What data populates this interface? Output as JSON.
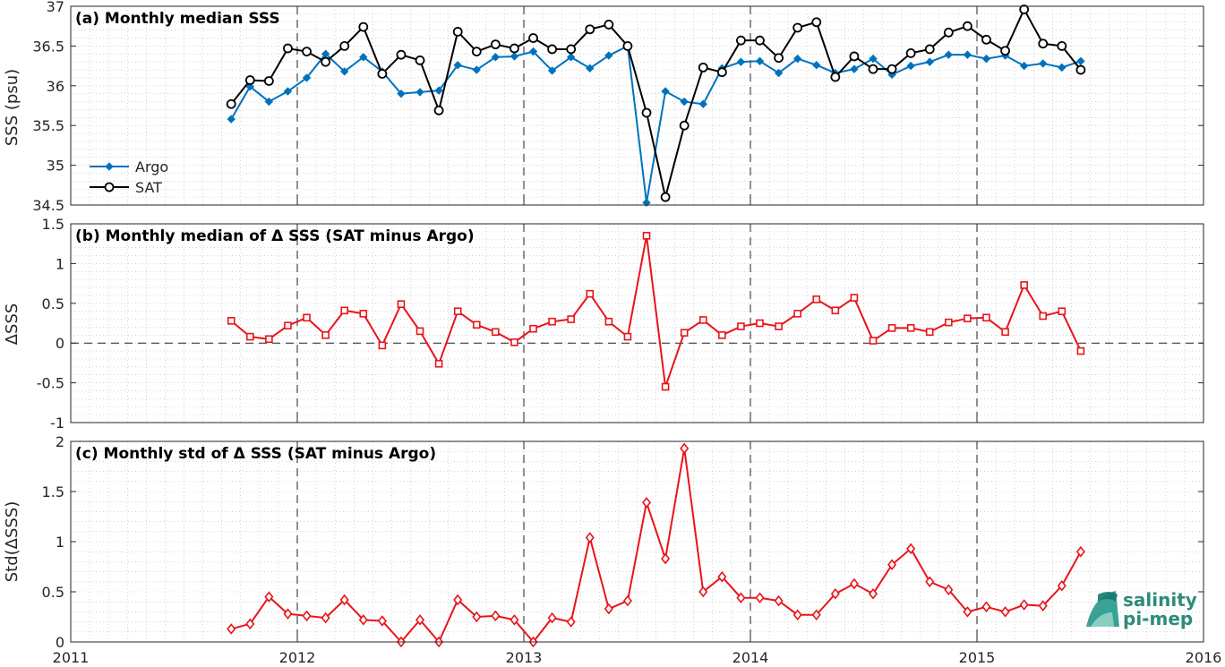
{
  "colors": {
    "argo": "#0072BD",
    "sat": "#000000",
    "delta": "#E8141A",
    "grid": "#b9b9b9",
    "axis": "#262626"
  },
  "logo": {
    "line1": "salinity",
    "line2": "pi-mep"
  },
  "chart_data": [
    {
      "type": "line",
      "title": "(a) Monthly median SSS",
      "ylabel": "SSS (psu)",
      "xlim": [
        2011,
        2016
      ],
      "ylim": [
        34.5,
        37
      ],
      "xticks": [
        "2011",
        "2012",
        "2013",
        "2014",
        "2015",
        "2016"
      ],
      "yticks": [
        "34.5",
        "35",
        "35.5",
        "36",
        "36.5",
        "37"
      ],
      "legend_position": "bottom-left",
      "grid": true,
      "series": [
        {
          "name": "Argo",
          "marker": "diamond",
          "color": "#0072BD",
          "values": [
            35.58,
            35.99,
            35.8,
            35.93,
            36.1,
            36.4,
            36.18,
            36.36,
            36.18,
            35.9,
            35.92,
            35.94,
            36.26,
            36.2,
            36.36,
            36.37,
            36.43,
            36.19,
            36.36,
            36.22,
            36.38,
            36.5,
            34.53,
            35.93,
            35.8,
            35.77,
            36.22,
            36.3,
            36.31,
            36.16,
            36.34,
            36.26,
            36.16,
            36.21,
            36.34,
            36.14,
            36.25,
            36.3,
            36.39,
            36.39,
            36.34,
            36.38,
            36.25,
            36.28,
            36.23,
            36.31
          ]
        },
        {
          "name": "SAT",
          "marker": "circle",
          "color": "#000000",
          "values": [
            35.77,
            36.07,
            36.06,
            36.47,
            36.43,
            36.3,
            36.5,
            36.74,
            36.15,
            36.39,
            36.32,
            35.69,
            36.68,
            36.43,
            36.52,
            36.47,
            36.6,
            36.46,
            36.46,
            36.71,
            36.77,
            36.5,
            35.66,
            34.6,
            35.5,
            36.23,
            36.17,
            36.57,
            36.57,
            36.35,
            36.73,
            36.8,
            36.11,
            36.37,
            36.21,
            36.21,
            36.41,
            36.46,
            36.67,
            36.75,
            36.58,
            36.44,
            36.96,
            36.53,
            36.5,
            36.2
          ]
        }
      ]
    },
    {
      "type": "line",
      "title": "(b) Monthly median of Δ SSS (SAT minus Argo)",
      "ylabel": "ΔSSS",
      "xlim": [
        2011,
        2016
      ],
      "ylim": [
        -1,
        1.5
      ],
      "xticks": [
        "2011",
        "2012",
        "2013",
        "2014",
        "2015",
        "2016"
      ],
      "yticks": [
        "-1",
        "-0.5",
        "0",
        "0.5",
        "1",
        "1.5"
      ],
      "grid": true,
      "zero_line": true,
      "series": [
        {
          "name": "",
          "marker": "square",
          "color": "#E8141A",
          "values": [
            0.28,
            0.08,
            0.05,
            0.22,
            0.32,
            0.1,
            0.41,
            0.37,
            -0.03,
            0.49,
            0.15,
            -0.26,
            0.4,
            0.23,
            0.14,
            0.01,
            0.18,
            0.27,
            0.3,
            0.62,
            0.27,
            0.08,
            1.35,
            -0.55,
            0.13,
            0.29,
            0.1,
            0.21,
            0.25,
            0.21,
            0.37,
            0.55,
            0.41,
            0.57,
            0.03,
            0.19,
            0.19,
            0.14,
            0.26,
            0.31,
            0.32,
            0.14,
            0.73,
            0.34,
            0.4,
            -0.1
          ]
        }
      ]
    },
    {
      "type": "line",
      "title": "(c) Monthly std of Δ SSS (SAT minus Argo)",
      "ylabel": "Std(ΔSSS)",
      "xlim": [
        2011,
        2016
      ],
      "ylim": [
        0,
        2
      ],
      "xticks": [
        "2011",
        "2012",
        "2013",
        "2014",
        "2015",
        "2016"
      ],
      "yticks": [
        "0",
        "0.5",
        "1",
        "1.5",
        "2"
      ],
      "grid": true,
      "series": [
        {
          "name": "",
          "marker": "diamond-open",
          "color": "#E8141A",
          "values": [
            0.13,
            0.18,
            0.45,
            0.28,
            0.26,
            0.24,
            0.42,
            0.22,
            0.21,
            0.0,
            0.22,
            0.0,
            0.42,
            0.25,
            0.26,
            0.22,
            0.0,
            0.24,
            0.2,
            1.04,
            0.33,
            0.41,
            1.39,
            0.83,
            1.93,
            0.5,
            0.65,
            0.44,
            0.44,
            0.41,
            0.27,
            0.27,
            0.48,
            0.58,
            0.48,
            0.77,
            0.93,
            0.6,
            0.52,
            0.3,
            0.35,
            0.3,
            0.37,
            0.36,
            0.56,
            0.9
          ]
        }
      ]
    }
  ],
  "x_start_decimal_year": 2011.7083,
  "x_step_years": 0.08333
}
